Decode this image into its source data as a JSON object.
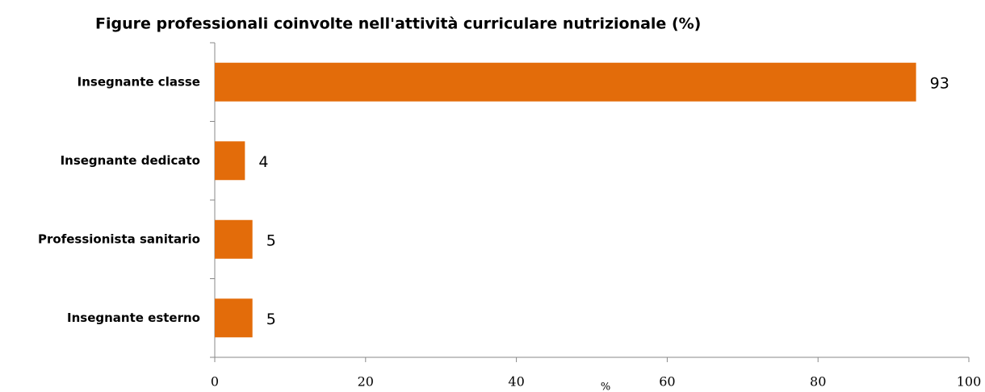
{
  "chart_data": {
    "type": "bar",
    "orientation": "horizontal",
    "title": "Figure professionali coinvolte nell'attività curriculare nutrizionale (%)",
    "categories": [
      "Insegnante classe",
      "Insegnante dedicato",
      "Professionista sanitario",
      "Insegnante esterno"
    ],
    "values": [
      93,
      4,
      5,
      5
    ],
    "color": "#e36c0a",
    "xlabel": "%",
    "xlim": [
      0,
      100
    ],
    "xticks": [
      0,
      20,
      40,
      60,
      80,
      100
    ],
    "grid": false
  }
}
